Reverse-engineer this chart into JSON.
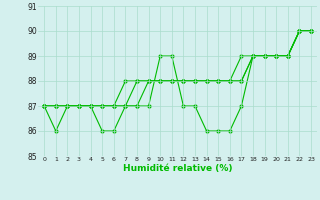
{
  "title": "",
  "xlabel": "Humidité relative (%)",
  "ylabel": "",
  "xlim": [
    -0.5,
    23.5
  ],
  "ylim": [
    85,
    91
  ],
  "yticks": [
    85,
    86,
    87,
    88,
    89,
    90,
    91
  ],
  "xticks": [
    0,
    1,
    2,
    3,
    4,
    5,
    6,
    7,
    8,
    9,
    10,
    11,
    12,
    13,
    14,
    15,
    16,
    17,
    18,
    19,
    20,
    21,
    22,
    23
  ],
  "bg_color": "#d4f0ee",
  "grid_color": "#aaddcc",
  "line_color": "#00bb00",
  "series": [
    [
      87,
      86,
      87,
      87,
      87,
      86,
      86,
      87,
      87,
      87,
      89,
      89,
      87,
      87,
      86,
      86,
      86,
      87,
      89,
      89,
      89,
      89,
      90,
      90
    ],
    [
      87,
      87,
      87,
      87,
      87,
      87,
      87,
      87,
      88,
      88,
      88,
      88,
      88,
      88,
      88,
      88,
      88,
      88,
      89,
      89,
      89,
      89,
      90,
      90
    ],
    [
      87,
      87,
      87,
      87,
      87,
      87,
      87,
      87,
      87,
      88,
      88,
      88,
      88,
      88,
      88,
      88,
      88,
      88,
      89,
      89,
      89,
      89,
      90,
      90
    ],
    [
      87,
      87,
      87,
      87,
      87,
      87,
      87,
      88,
      88,
      88,
      88,
      88,
      88,
      88,
      88,
      88,
      88,
      89,
      89,
      89,
      89,
      89,
      90,
      90
    ]
  ]
}
